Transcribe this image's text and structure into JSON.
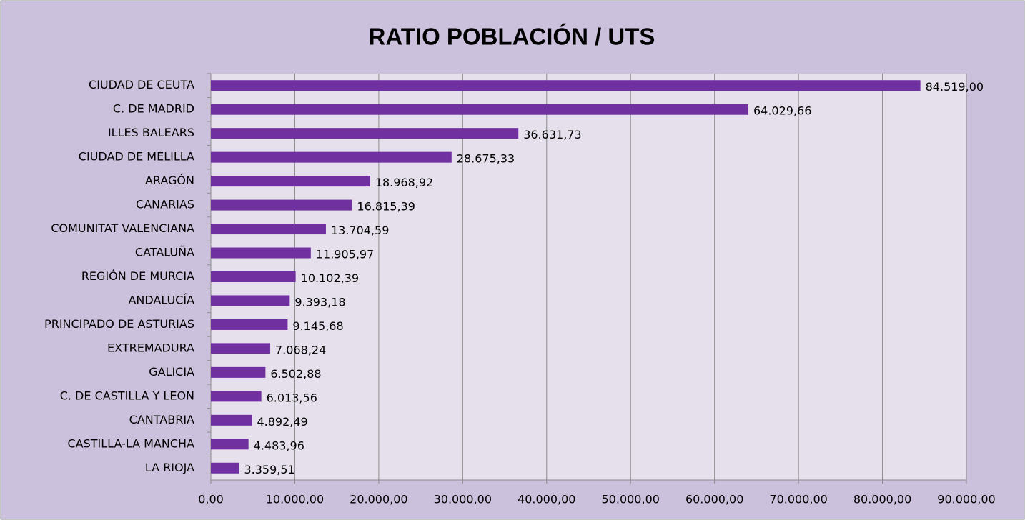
{
  "chart_data": {
    "type": "bar",
    "orientation": "horizontal",
    "title": "RATIO POBLACIÓN / UTS",
    "categories": [
      "CIUDAD DE CEUTA",
      "C. DE MADRID",
      "ILLES BALEARS",
      "CIUDAD DE MELILLA",
      "ARAGÓN",
      "CANARIAS",
      "COMUNITAT VALENCIANA",
      "CATALUÑA",
      "REGIÓN DE MURCIA",
      "ANDALUCÍA",
      "PRINCIPADO DE ASTURIAS",
      "EXTREMADURA",
      "GALICIA",
      "C. DE CASTILLA Y LEON",
      "CANTABRIA",
      "CASTILLA-LA MANCHA",
      "LA RIOJA"
    ],
    "values": [
      84519.0,
      64029.66,
      36631.73,
      28675.33,
      18968.92,
      16815.39,
      13704.59,
      11905.97,
      10102.39,
      9393.18,
      9145.68,
      7068.24,
      6502.88,
      6013.56,
      4892.49,
      4483.96,
      3359.51
    ],
    "value_labels": [
      "84.519,00",
      "64.029,66",
      "36.631,73",
      "28.675,33",
      "18.968,92",
      "16.815,39",
      "13.704,59",
      "11.905,97",
      "10.102,39",
      "9.393,18",
      "9.145,68",
      "7.068,24",
      "6.502,88",
      "6.013,56",
      "4.892,49",
      "4.483,96",
      "3.359,51"
    ],
    "color": "#7030a0",
    "xlim": [
      0,
      90000
    ],
    "xticks": [
      {
        "value": 0,
        "label": "0,00"
      },
      {
        "value": 10000,
        "label": "10.000,00"
      },
      {
        "value": 20000,
        "label": "20.000,00"
      },
      {
        "value": 30000,
        "label": "30.000,00"
      },
      {
        "value": 40000,
        "label": "40.000,00"
      },
      {
        "value": 50000,
        "label": "50.000,00"
      },
      {
        "value": 60000,
        "label": "60.000,00"
      },
      {
        "value": 70000,
        "label": "70.000,00"
      },
      {
        "value": 80000,
        "label": "80.000,00"
      },
      {
        "value": 90000,
        "label": "90.000,00"
      }
    ],
    "grid": true
  }
}
